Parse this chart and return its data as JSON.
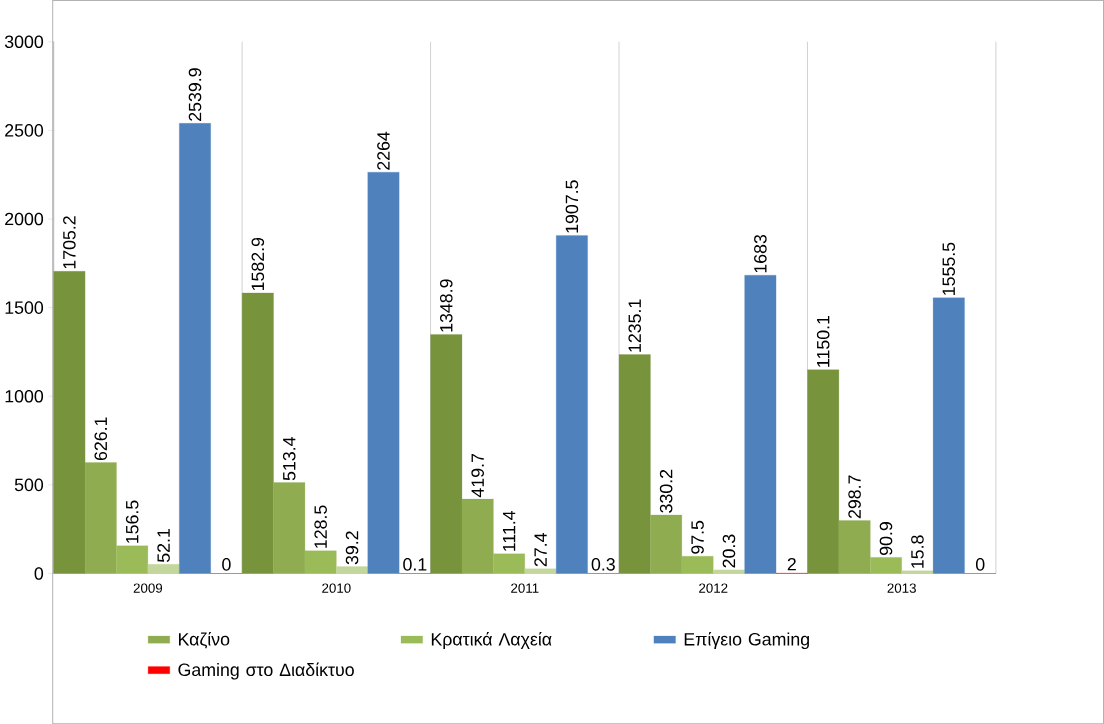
{
  "chart_data": {
    "type": "bar",
    "categories": [
      "2009",
      "2010",
      "2011",
      "2012",
      "2013"
    ],
    "series": [
      {
        "color": "#77933c",
        "values": [
          1705.2,
          1582.9,
          1348.9,
          1235.1,
          1150.1
        ]
      },
      {
        "name": "Καζίνο",
        "color": "#8fad50",
        "values": [
          626.1,
          513.4,
          419.7,
          330.2,
          298.7
        ]
      },
      {
        "name": "Κρατικά Λαχεία",
        "color": "#9bbb59",
        "values": [
          156.5,
          128.5,
          111.4,
          97.5,
          90.9
        ]
      },
      {
        "color": "#c3d69b",
        "values": [
          52.1,
          39.2,
          27.4,
          20.3,
          15.8
        ]
      },
      {
        "name": "Επίγειο Gaming",
        "color": "#4f81bd",
        "values": [
          2539.9,
          2264,
          1907.5,
          1683,
          1555.5
        ]
      },
      {
        "name": "Gaming στο Διαδίκτυο",
        "color": "#ff0000",
        "values": [
          0,
          0.1,
          0.3,
          2,
          0
        ]
      }
    ],
    "ylim": [
      0,
      3000
    ],
    "yticks": [
      0,
      500,
      1000,
      1500,
      2000,
      2500,
      3000
    ],
    "grid": "x",
    "legend": "bottom",
    "data_labels": true
  }
}
